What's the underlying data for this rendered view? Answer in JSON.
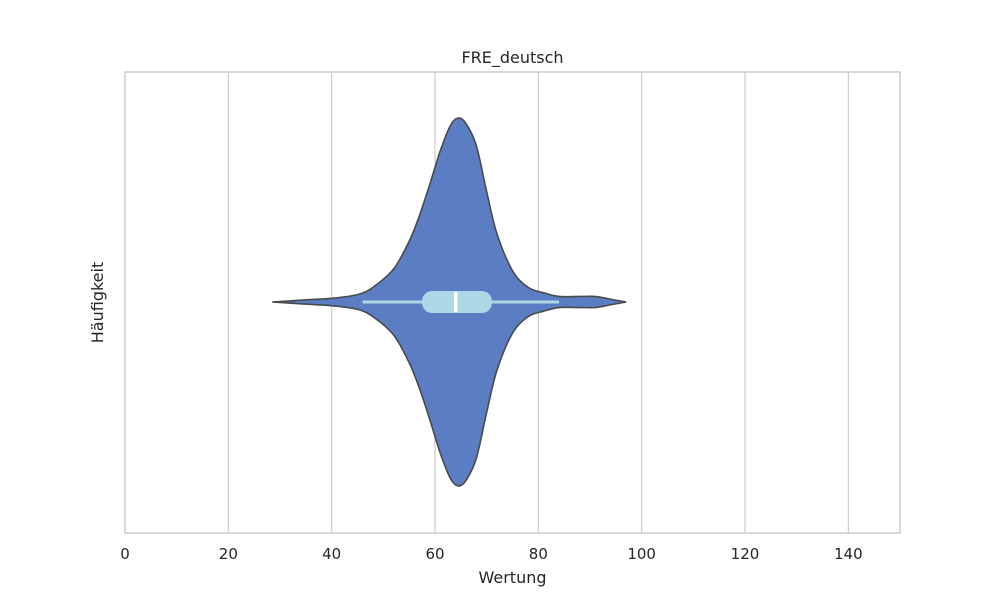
{
  "chart_data": {
    "type": "violin",
    "title": "FRE_deutsch",
    "xlabel": "Wertung",
    "ylabel": "Häufigkeit",
    "xlim": [
      0,
      150
    ],
    "xticks": [
      0,
      20,
      40,
      60,
      80,
      100,
      120,
      140
    ],
    "grid": "vertical",
    "orientation": "horizontal",
    "violin": {
      "min": 28.5,
      "max": 97,
      "density_profile": [
        {
          "x": 28.5,
          "d": 0.0
        },
        {
          "x": 34,
          "d": 0.01
        },
        {
          "x": 40,
          "d": 0.02
        },
        {
          "x": 45,
          "d": 0.04
        },
        {
          "x": 48,
          "d": 0.08
        },
        {
          "x": 52,
          "d": 0.18
        },
        {
          "x": 55,
          "d": 0.33
        },
        {
          "x": 57,
          "d": 0.47
        },
        {
          "x": 59,
          "d": 0.64
        },
        {
          "x": 61,
          "d": 0.82
        },
        {
          "x": 63,
          "d": 0.96
        },
        {
          "x": 64.5,
          "d": 1.0
        },
        {
          "x": 66,
          "d": 0.97
        },
        {
          "x": 68,
          "d": 0.85
        },
        {
          "x": 70,
          "d": 0.6
        },
        {
          "x": 72,
          "d": 0.37
        },
        {
          "x": 75,
          "d": 0.17
        },
        {
          "x": 78,
          "d": 0.08
        },
        {
          "x": 81,
          "d": 0.05
        },
        {
          "x": 84,
          "d": 0.03
        },
        {
          "x": 88,
          "d": 0.03
        },
        {
          "x": 91,
          "d": 0.03
        },
        {
          "x": 94,
          "d": 0.015
        },
        {
          "x": 97,
          "d": 0.0
        }
      ],
      "q1": 57.5,
      "median": 64,
      "q3": 71,
      "whisker_low": 46,
      "whisker_high": 84
    },
    "colors": {
      "violin_fill": "#5b7dc4",
      "violin_edge": "#4a4a4a",
      "box_fill": "#add8e6",
      "median": "#ffffff",
      "grid": "#cccccc",
      "axis": "#cccccc"
    }
  }
}
